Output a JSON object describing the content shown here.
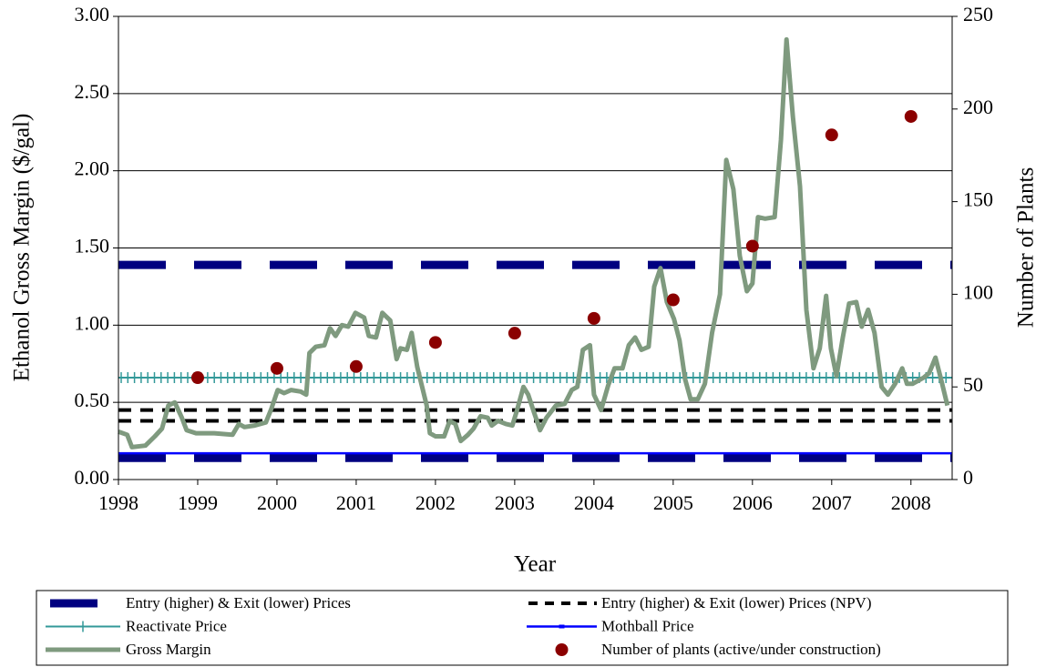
{
  "chart_data": {
    "type": "line",
    "x_label": "Year",
    "y_label": "Ethanol Gross Margin ($/gal)",
    "y2_label": "Number of Plants",
    "xlim": [
      1998,
      2008.52
    ],
    "xticks": [
      1998,
      1999,
      2000,
      2001,
      2002,
      2003,
      2004,
      2005,
      2006,
      2007,
      2008
    ],
    "ylim": [
      0,
      3
    ],
    "yticks": [
      {
        "value": 0,
        "label": "0.00"
      },
      {
        "value": 0.5,
        "label": "0.50"
      },
      {
        "value": 1,
        "label": "1.00"
      },
      {
        "value": 1.5,
        "label": "1.50"
      },
      {
        "value": 2,
        "label": "2.00"
      },
      {
        "value": 2.5,
        "label": "2.50"
      },
      {
        "value": 3,
        "label": "3.00"
      }
    ],
    "y2lim": [
      0,
      250
    ],
    "y2ticks": [
      0,
      50,
      100,
      150,
      200,
      250
    ],
    "grid": true,
    "series": [
      {
        "name": "Entry (higher) & Exit (lower) Prices",
        "kind": "hline",
        "style": "long-dash",
        "color": "#000080",
        "values": [
          1.39,
          0.14
        ]
      },
      {
        "name": "Entry (higher) & Exit (lower) Prices (NPV)",
        "kind": "hline",
        "style": "short-dash",
        "color": "#000000",
        "values": [
          0.45,
          0.38
        ]
      },
      {
        "name": "Reactivate Price",
        "kind": "hline",
        "style": "cross",
        "color": "#339999",
        "values": [
          0.66
        ]
      },
      {
        "name": "Mothball Price",
        "kind": "hline",
        "style": "solid",
        "color": "#0000ff",
        "values": [
          0.17
        ]
      },
      {
        "name": "Gross Margin",
        "kind": "line",
        "color": "#7f9a7f",
        "x": [
          1998.0,
          1998.11,
          1998.17,
          1998.34,
          1998.46,
          1998.55,
          1998.63,
          1998.71,
          1998.8,
          1998.86,
          1998.98,
          1999.21,
          1999.44,
          1999.52,
          1999.59,
          1999.72,
          1999.86,
          1999.93,
          2000.01,
          2000.09,
          2000.18,
          2000.3,
          2000.37,
          2000.41,
          2000.49,
          2000.6,
          2000.67,
          2000.74,
          2000.82,
          2000.9,
          2000.99,
          2001.1,
          2001.16,
          2001.25,
          2001.33,
          2001.43,
          2001.51,
          2001.56,
          2001.64,
          2001.7,
          2001.77,
          2001.89,
          2001.93,
          2002.0,
          2002.11,
          2002.18,
          2002.25,
          2002.32,
          2002.41,
          2002.48,
          2002.57,
          2002.66,
          2002.71,
          2002.79,
          2002.89,
          2002.97,
          2003.03,
          2003.11,
          2003.17,
          2003.24,
          2003.32,
          2003.4,
          2003.52,
          2003.63,
          2003.72,
          2003.79,
          2003.86,
          2003.95,
          2004.0,
          2004.09,
          2004.18,
          2004.26,
          2004.36,
          2004.44,
          2004.52,
          2004.6,
          2004.69,
          2004.76,
          2004.84,
          2004.92,
          2005.01,
          2005.08,
          2005.15,
          2005.22,
          2005.31,
          2005.4,
          2005.49,
          2005.59,
          2005.67,
          2005.76,
          2005.84,
          2005.93,
          2006.0,
          2006.07,
          2006.16,
          2006.28,
          2006.36,
          2006.43,
          2006.51,
          2006.6,
          2006.68,
          2006.77,
          2006.85,
          2006.93,
          2006.99,
          2007.06,
          2007.14,
          2007.22,
          2007.31,
          2007.38,
          2007.46,
          2007.54,
          2007.63,
          2007.71,
          2007.8,
          2007.89,
          2007.95,
          2008.02,
          2008.09,
          2008.16,
          2008.23,
          2008.31,
          2008.38,
          2008.46
        ],
        "values": [
          0.31,
          0.29,
          0.21,
          0.22,
          0.28,
          0.33,
          0.48,
          0.5,
          0.4,
          0.32,
          0.3,
          0.3,
          0.29,
          0.36,
          0.34,
          0.35,
          0.37,
          0.46,
          0.58,
          0.56,
          0.58,
          0.57,
          0.55,
          0.82,
          0.86,
          0.87,
          0.98,
          0.93,
          1.0,
          0.99,
          1.08,
          1.05,
          0.93,
          0.92,
          1.08,
          1.03,
          0.78,
          0.85,
          0.84,
          0.95,
          0.73,
          0.48,
          0.3,
          0.28,
          0.28,
          0.38,
          0.36,
          0.25,
          0.29,
          0.33,
          0.41,
          0.4,
          0.35,
          0.38,
          0.36,
          0.35,
          0.45,
          0.6,
          0.55,
          0.44,
          0.32,
          0.4,
          0.48,
          0.49,
          0.58,
          0.6,
          0.84,
          0.87,
          0.55,
          0.45,
          0.61,
          0.72,
          0.72,
          0.87,
          0.92,
          0.84,
          0.86,
          1.25,
          1.37,
          1.15,
          1.04,
          0.9,
          0.65,
          0.52,
          0.52,
          0.62,
          0.95,
          1.2,
          2.07,
          1.88,
          1.45,
          1.22,
          1.27,
          1.7,
          1.69,
          1.7,
          2.2,
          2.85,
          2.35,
          1.9,
          1.1,
          0.72,
          0.85,
          1.19,
          0.85,
          0.67,
          0.92,
          1.14,
          1.15,
          0.99,
          1.1,
          0.95,
          0.6,
          0.55,
          0.62,
          0.72,
          0.62,
          0.62,
          0.64,
          0.66,
          0.69,
          0.79,
          0.65,
          0.48
        ]
      },
      {
        "name": "Number of plants (active/under construction)",
        "kind": "scatter",
        "axis": "y2",
        "color": "#8b0000",
        "x": [
          1999,
          2000,
          2001,
          2002,
          2003,
          2004,
          2005,
          2006,
          2007,
          2008
        ],
        "values": [
          55,
          60,
          61,
          74,
          79,
          87,
          97,
          126,
          186,
          196
        ]
      }
    ]
  }
}
